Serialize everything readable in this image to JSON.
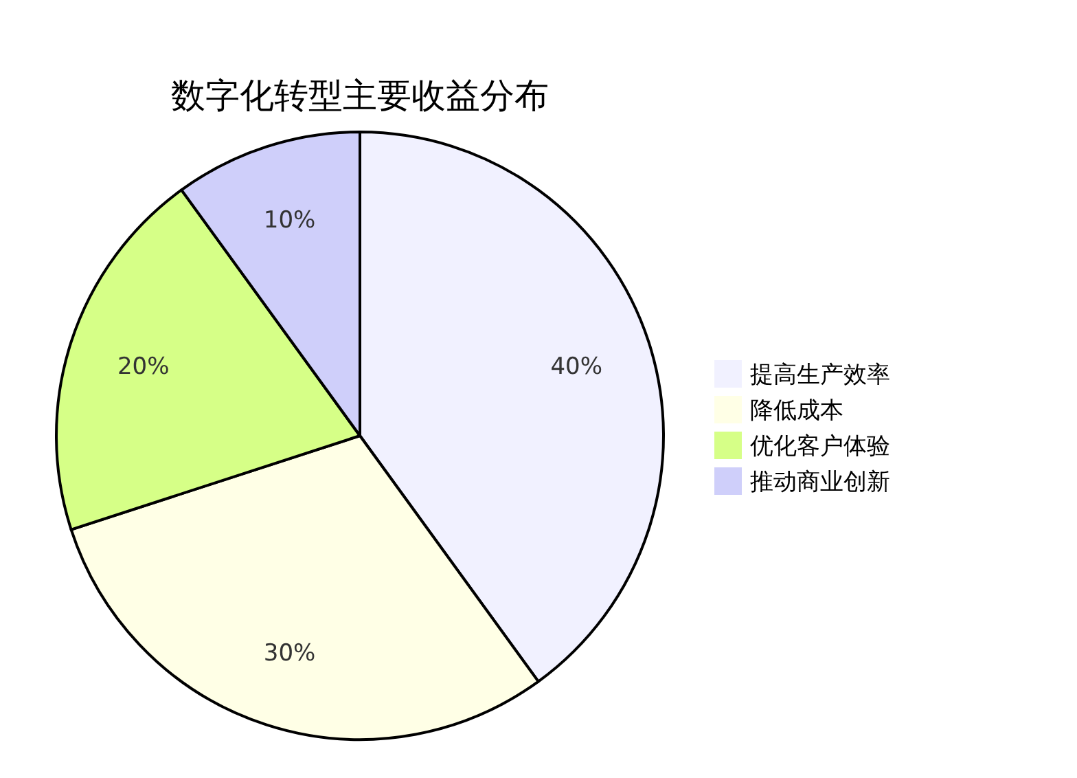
{
  "chart_data": {
    "type": "pie",
    "title": "数字化转型主要收益分布",
    "categories": [
      "提高生产效率",
      "降低成本",
      "优化客户体验",
      "推动商业创新"
    ],
    "values": [
      40,
      30,
      20,
      10
    ],
    "colors": [
      "#f1f1ff",
      "#ffffe6",
      "#d6ff87",
      "#cfcffa"
    ],
    "value_labels": [
      "40%",
      "30%",
      "20%",
      "10%"
    ],
    "legend": "right"
  }
}
